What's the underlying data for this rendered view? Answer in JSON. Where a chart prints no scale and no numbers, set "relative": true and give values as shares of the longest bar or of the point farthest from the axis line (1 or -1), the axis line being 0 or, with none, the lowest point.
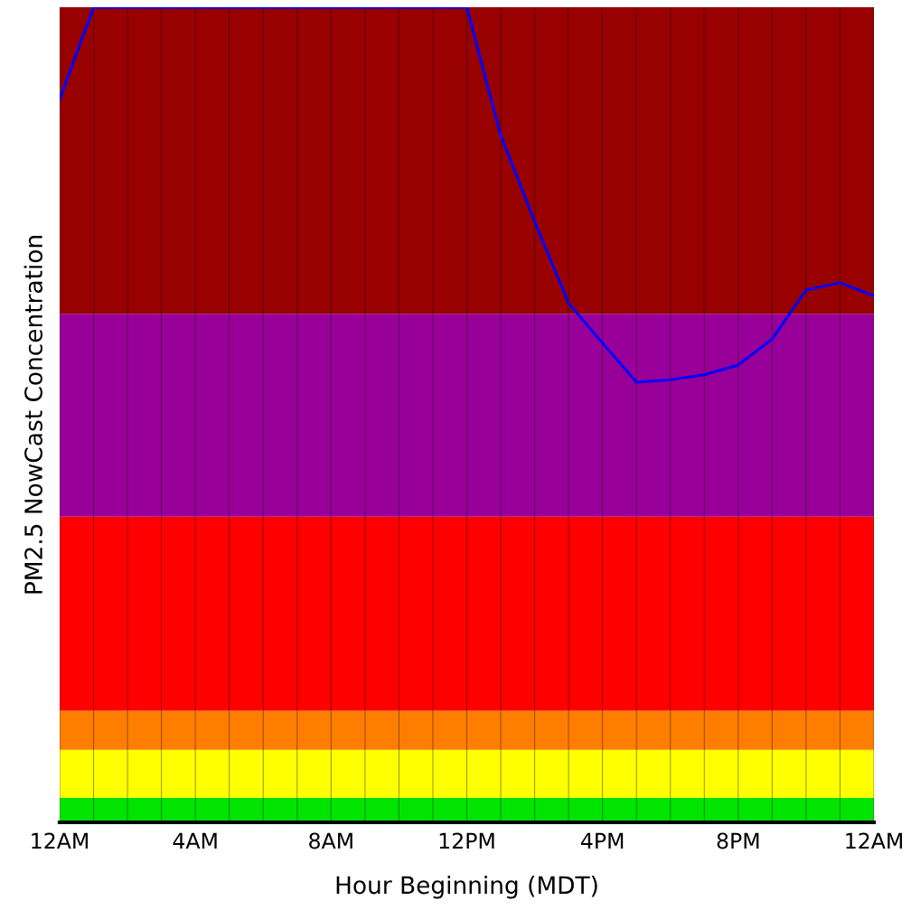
{
  "chart_data": {
    "type": "line",
    "relative": true,
    "xlabel": "Hour Beginning (MDT)",
    "ylabel": "PM2.5 NowCast Concentration",
    "categories": [
      "12AM",
      null,
      null,
      null,
      "4AM",
      null,
      null,
      null,
      "8AM",
      null,
      null,
      null,
      "12PM",
      null,
      null,
      null,
      "4PM",
      null,
      null,
      null,
      "8PM",
      null,
      null,
      null,
      "12AM"
    ],
    "series": [
      {
        "color": "#0000ff",
        "values": [
          0.887,
          1,
          1,
          1,
          1,
          1,
          1,
          1,
          1,
          1,
          1,
          1,
          1,
          0.843,
          0.737,
          0.637,
          0.588,
          0.54,
          0.543,
          0.549,
          0.561,
          0.593,
          0.653,
          0.662,
          0.646
        ]
      }
    ],
    "bands": [
      {
        "axis": "y",
        "from": 0,
        "to": 0.03,
        "color": "#00e400"
      },
      {
        "axis": "y",
        "from": 0.03,
        "to": 0.089,
        "color": "#ffff00"
      },
      {
        "axis": "y",
        "from": 0.089,
        "to": 0.137,
        "color": "#ff7e00"
      },
      {
        "axis": "y",
        "from": 0.137,
        "to": 0.375,
        "color": "#ff0000"
      },
      {
        "axis": "y",
        "from": 0.375,
        "to": 0.624,
        "color": "#990099"
      },
      {
        "axis": "y",
        "from": 0.624,
        "to": 1,
        "color": "#990000"
      }
    ],
    "grid": "x",
    "marker": "none",
    "line_style": "solid"
  }
}
